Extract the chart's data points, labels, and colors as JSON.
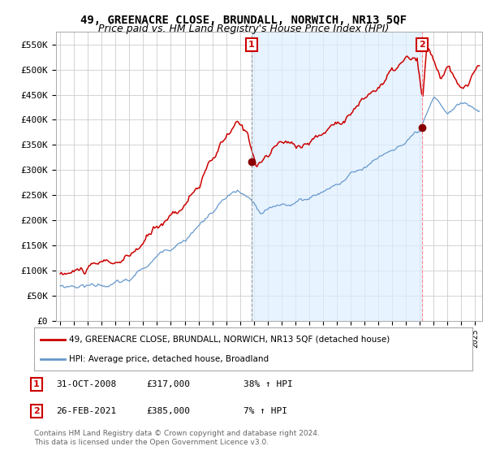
{
  "title": "49, GREENACRE CLOSE, BRUNDALL, NORWICH, NR13 5QF",
  "subtitle": "Price paid vs. HM Land Registry's House Price Index (HPI)",
  "ylabel_ticks": [
    "£0",
    "£50K",
    "£100K",
    "£150K",
    "£200K",
    "£250K",
    "£300K",
    "£350K",
    "£400K",
    "£450K",
    "£500K",
    "£550K"
  ],
  "ytick_values": [
    0,
    50000,
    100000,
    150000,
    200000,
    250000,
    300000,
    350000,
    400000,
    450000,
    500000,
    550000
  ],
  "ylim": [
    0,
    575000
  ],
  "xlim_start": 1994.7,
  "xlim_end": 2025.5,
  "marker1_x": 2008.83,
  "marker1_y": 317000,
  "marker1_label": "1",
  "marker2_x": 2021.15,
  "marker2_y": 385000,
  "marker2_label": "2",
  "red_line_color": "#cc0000",
  "blue_line_color": "#6699cc",
  "blue_fill_color": "#ddeeff",
  "marker_box_color": "#cc0000",
  "marker_dot_color": "#880000",
  "legend_label_red": "49, GREENACRE CLOSE, BRUNDALL, NORWICH, NR13 5QF (detached house)",
  "legend_label_blue": "HPI: Average price, detached house, Broadland",
  "table_row1": [
    "1",
    "31-OCT-2008",
    "£317,000",
    "38% ↑ HPI"
  ],
  "table_row2": [
    "2",
    "26-FEB-2021",
    "£385,000",
    "7% ↑ HPI"
  ],
  "footnote": "Contains HM Land Registry data © Crown copyright and database right 2024.\nThis data is licensed under the Open Government Licence v3.0.",
  "title_fontsize": 10,
  "subtitle_fontsize": 9,
  "axis_fontsize": 8,
  "background_color": "#ffffff",
  "grid_color": "#cccccc"
}
